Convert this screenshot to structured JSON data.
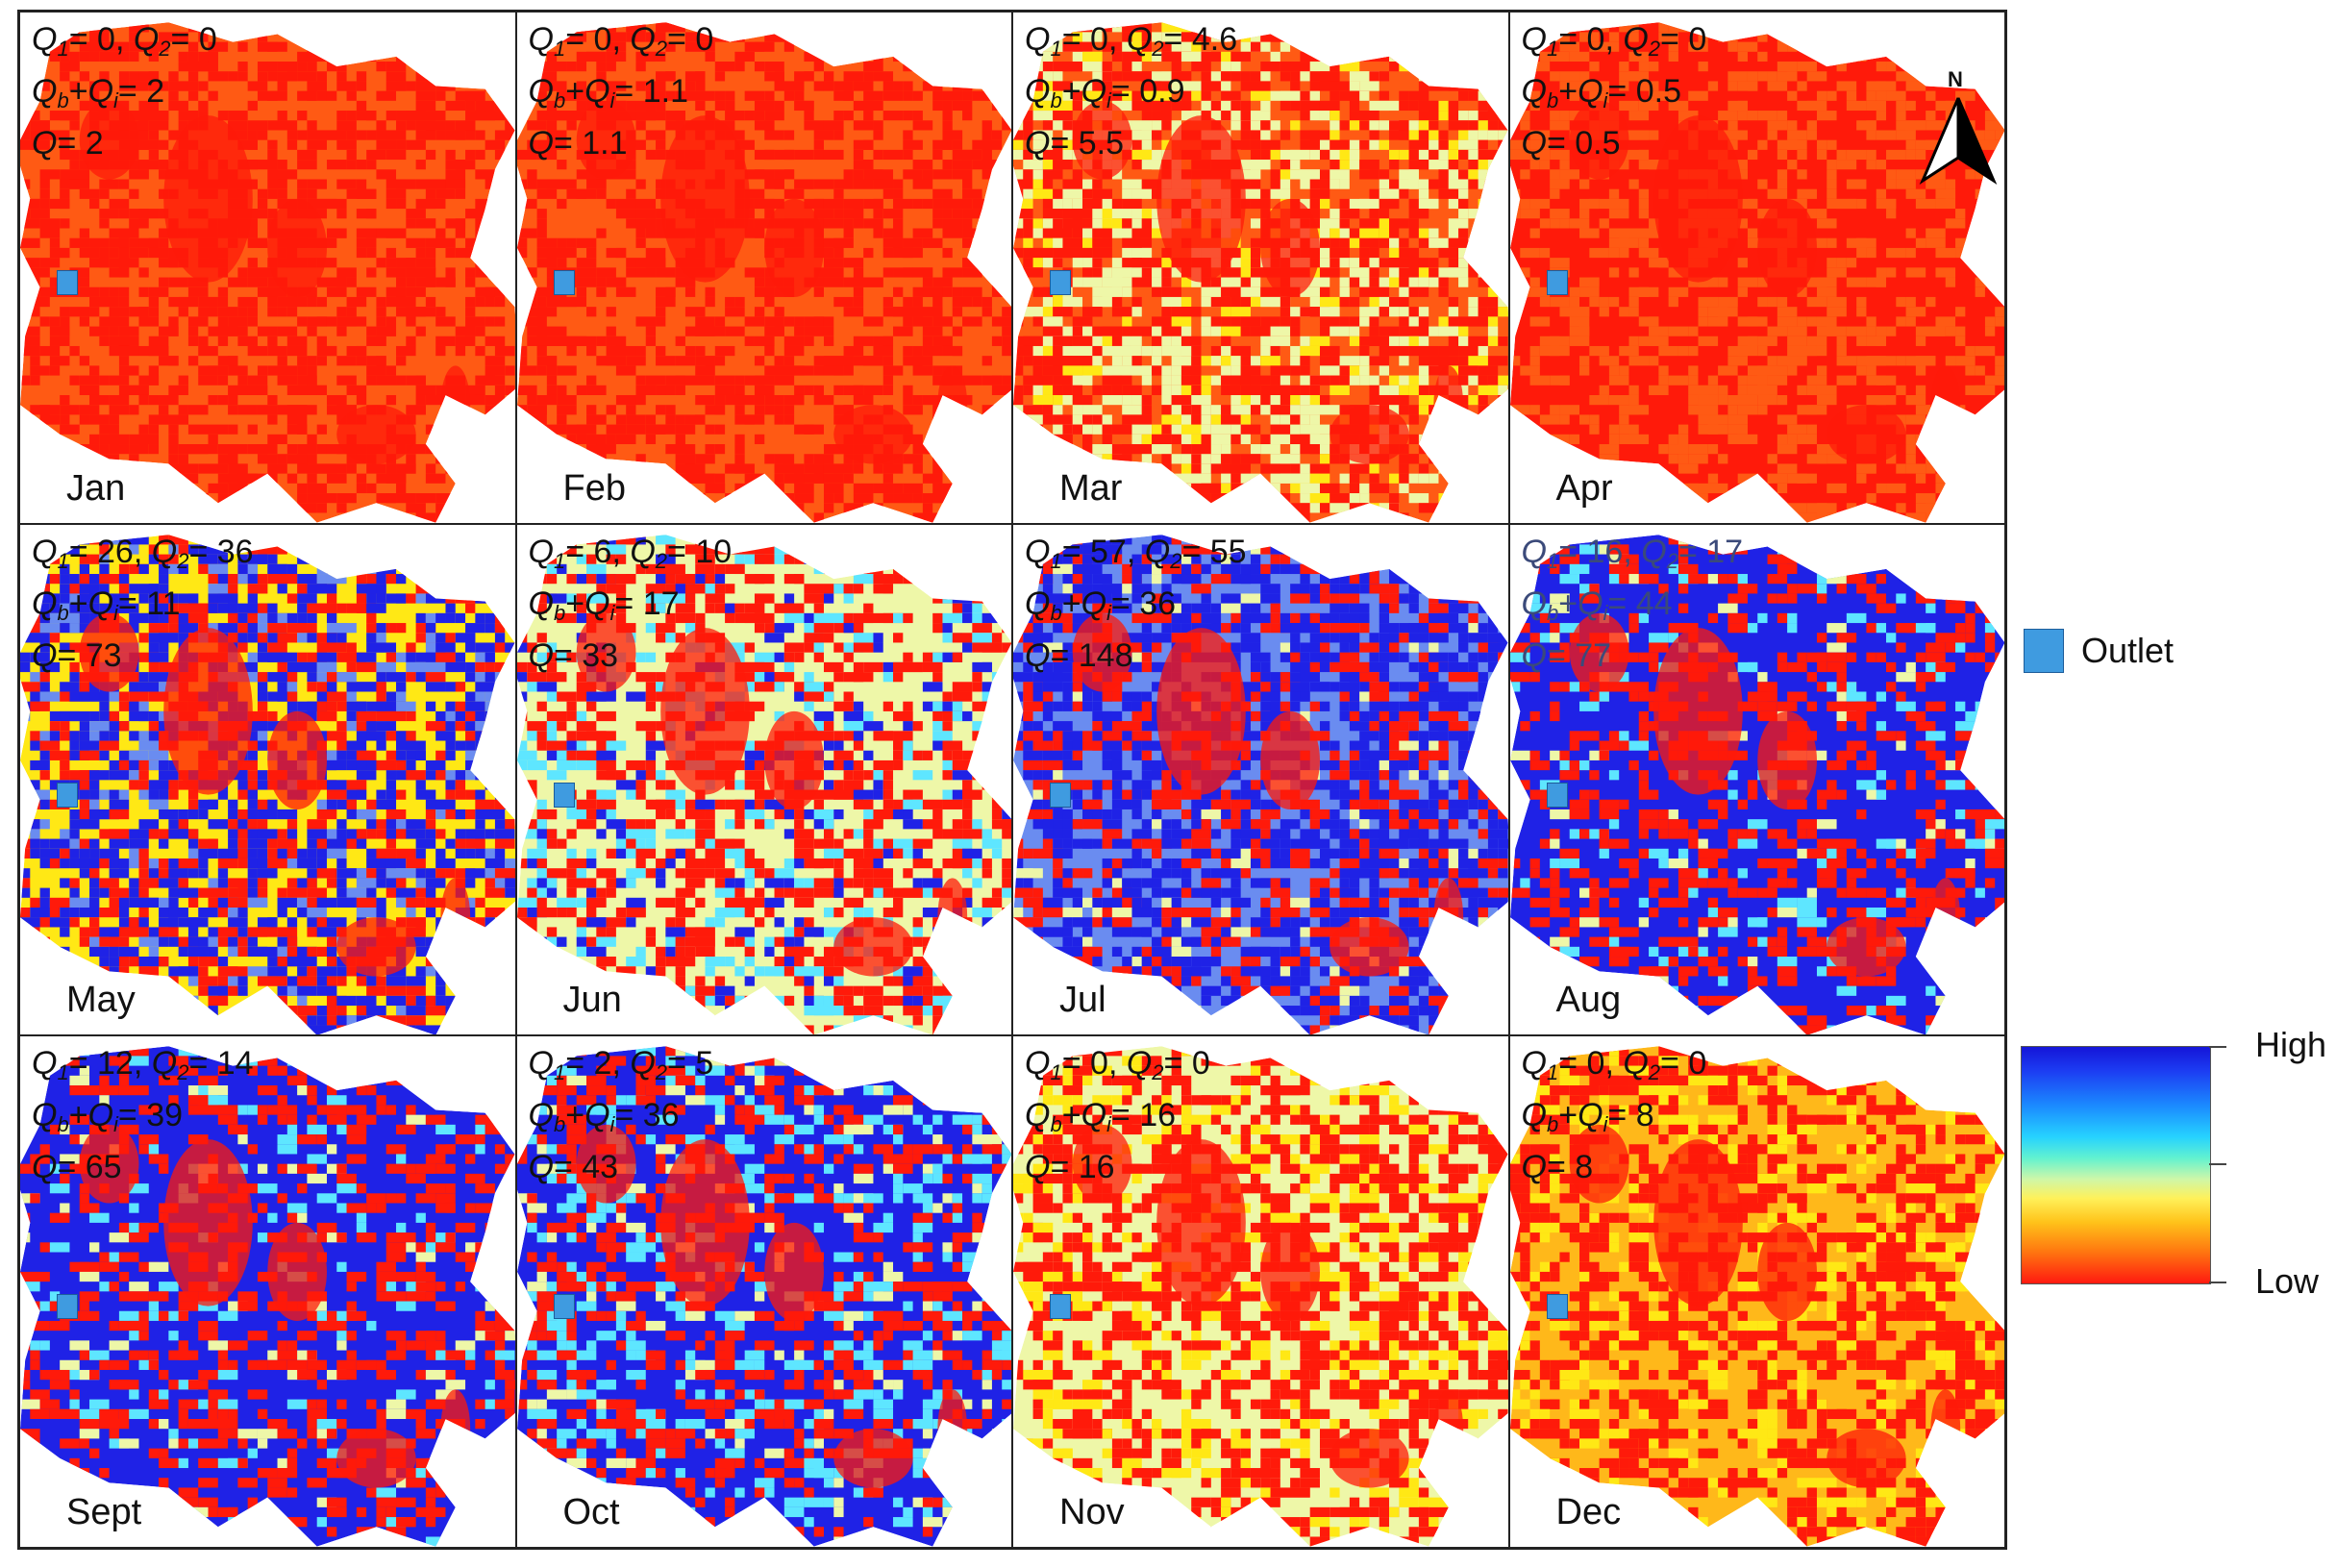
{
  "panels": [
    {
      "month": "Jan",
      "q1": "0",
      "q2": "0",
      "qbqi": "2",
      "q": "2",
      "palette": "orange"
    },
    {
      "month": "Feb",
      "q1": "0",
      "q2": "0",
      "qbqi": "1.1",
      "q": "1.1",
      "palette": "orange"
    },
    {
      "month": "Mar",
      "q1": "0",
      "q2": "4.6",
      "qbqi": "0.9",
      "q": "5.5",
      "palette": "orange-stream"
    },
    {
      "month": "Apr",
      "q1": "0",
      "q2": "0",
      "qbqi": "0.5",
      "q": "0.5",
      "palette": "red"
    },
    {
      "month": "May",
      "q1": "26",
      "q2": "36",
      "qbqi": "11",
      "q": "73",
      "palette": "yellow-blue"
    },
    {
      "month": "Jun",
      "q1": "6",
      "q2": "10",
      "qbqi": "17",
      "q": "33",
      "palette": "pale"
    },
    {
      "month": "Jul",
      "q1": "57",
      "q2": "55",
      "qbqi": "36",
      "q": "148",
      "palette": "lightblue"
    },
    {
      "month": "Aug",
      "q1": "16",
      "q2": "17",
      "qbqi": "44",
      "q": "77",
      "palette": "blue"
    },
    {
      "month": "Sept",
      "q1": "12",
      "q2": "14",
      "qbqi": "39",
      "q": "65",
      "palette": "blue"
    },
    {
      "month": "Oct",
      "q1": "2",
      "q2": "5",
      "qbqi": "36",
      "q": "43",
      "palette": "blue-cyan"
    },
    {
      "month": "Nov",
      "q1": "0",
      "q2": "0",
      "qbqi": "16",
      "q": "16",
      "palette": "yellow-red"
    },
    {
      "month": "Dec",
      "q1": "0",
      "q2": "0",
      "qbqi": "8",
      "q": "8",
      "palette": "gold"
    }
  ],
  "labels": {
    "q1": "Q",
    "q2": "Q",
    "qbqi": "Q",
    "q": "Q"
  },
  "north_label": "N",
  "legend": {
    "outlet_label": "Outlet",
    "outlet_color": "#3f9be0",
    "high_label": "High",
    "low_label": "Low"
  },
  "colors": {
    "red": "#ff1a0a",
    "orange": "#ff5a14",
    "yellow": "#ffe815",
    "pale": "#eef7a8",
    "cyan": "#5ee6ff",
    "lightblue": "#6a8cf0",
    "blue": "#1f22e6"
  }
}
